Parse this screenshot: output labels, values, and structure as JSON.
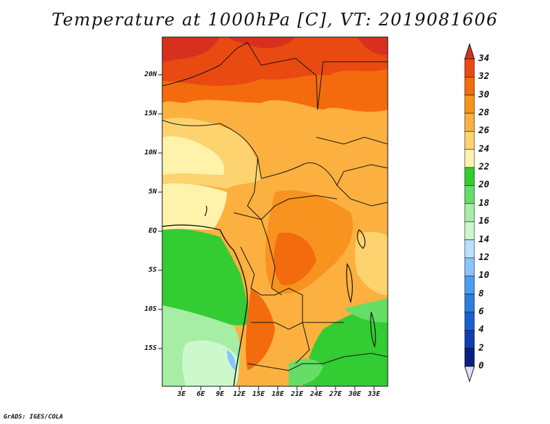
{
  "title": "Temperature at 1000hPa [C], VT: 2019081606",
  "credit": "GrADS: IGES/COLA",
  "map": {
    "lat_labels": [
      "20N",
      "15N",
      "10N",
      "5N",
      "EQ",
      "5S",
      "10S",
      "15S"
    ],
    "lon_labels": [
      "3E",
      "6E",
      "9E",
      "12E",
      "15E",
      "18E",
      "21E",
      "24E",
      "27E",
      "30E",
      "33E"
    ]
  },
  "colorbar": {
    "labels": [
      "34",
      "32",
      "30",
      "28",
      "26",
      "24",
      "22",
      "20",
      "18",
      "16",
      "14",
      "12",
      "10",
      "8",
      "6",
      "4",
      "2",
      "0"
    ],
    "colors": [
      "#d7301f",
      "#e84a12",
      "#f36b0c",
      "#f7931e",
      "#fbb040",
      "#fdd36f",
      "#fff2aa",
      "#33cc33",
      "#66dd66",
      "#a6eda6",
      "#ccf8cc",
      "#b8e0ff",
      "#88c4ff",
      "#4c9ff0",
      "#2c7ee0",
      "#1a5fd0",
      "#0f3fb0",
      "#0a1f80",
      "#e0e0ff"
    ]
  }
}
